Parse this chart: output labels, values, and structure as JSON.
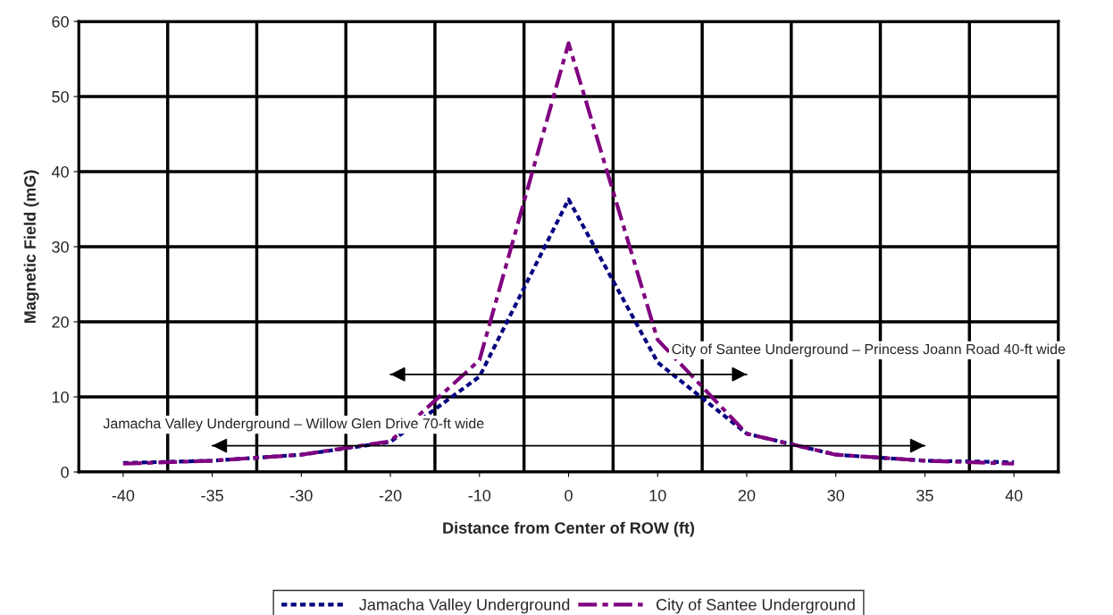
{
  "chart_data": {
    "type": "line",
    "xlabel": "Distance from Center of ROW (ft)",
    "ylabel": "Magnetic Field (mG)",
    "categories": [
      "-40",
      "-35",
      "-30",
      "-20",
      "-10",
      "0",
      "10",
      "20",
      "30",
      "35",
      "40"
    ],
    "series": [
      {
        "name": "Jamacha Valley Underground",
        "color": "#000080",
        "line_style": "dotted",
        "values": [
          1.2,
          1.5,
          2.3,
          4.0,
          12.7,
          36.3,
          14.6,
          5.1,
          2.3,
          1.5,
          1.3
        ]
      },
      {
        "name": "City of Santee Underground",
        "color": "#800080",
        "line_style": "dashed",
        "values": [
          1.1,
          1.5,
          2.3,
          4.1,
          14.9,
          57.1,
          17.6,
          5.1,
          2.3,
          1.5,
          1.1
        ]
      },
      {
        "color": "#000000",
        "line_style": "solid",
        "values": [
          null,
          null,
          null,
          13,
          13,
          13,
          13,
          13,
          null,
          null,
          null
        ]
      },
      {
        "color": "#000000",
        "line_style": "solid",
        "values": [
          null,
          3.5,
          3.5,
          3.5,
          3.5,
          3.5,
          3.5,
          3.5,
          3.5,
          3.5,
          null
        ]
      }
    ],
    "annotations": [
      "City of Santee Underground – Princess Joann Road 40-ft wide",
      "Jamacha Valley Underground – Willow Glen Drive 70-ft wide"
    ],
    "ylim": [
      0,
      60
    ],
    "yticks": [
      0,
      10,
      20,
      30,
      40,
      50,
      60
    ],
    "grid": true,
    "legend": "bottom"
  }
}
